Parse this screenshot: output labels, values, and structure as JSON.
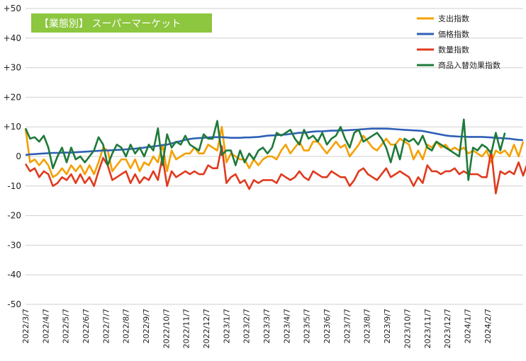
{
  "chart_data": {
    "type": "line",
    "title": "【業態別】 スーパーマーケット",
    "title_box_color": "#8DC63F",
    "ylim": [
      -50,
      50
    ],
    "yticks": [
      "+50",
      "+40",
      "+30",
      "+20",
      "+10",
      "0",
      "-10",
      "-20",
      "-30",
      "-40",
      "-50"
    ],
    "ytick_values": [
      50,
      40,
      30,
      20,
      10,
      0,
      -10,
      -20,
      -30,
      -40,
      -50
    ],
    "xtick_labels": [
      "2022/3/7",
      "2022/4/7",
      "2022/5/7",
      "2022/6/7",
      "2022/7/7",
      "2022/8/7",
      "2022/9/7",
      "2022/10/7",
      "2022/11/7",
      "2022/12/7",
      "2023/1/7",
      "2023/2/7",
      "2023/3/7",
      "2023/4/7",
      "2023/5/7",
      "2023/6/7",
      "2023/7/7",
      "2023/8/7",
      "2023/9/7",
      "2023/10/7",
      "2023/11/7",
      "2023/12/7",
      "2024/1/7",
      "2024/2/7"
    ],
    "points_per_month": 4.4,
    "legend_position": "top-right",
    "grid": true,
    "series": [
      {
        "name": "支出指数",
        "color": "#F5A000",
        "values": [
          9.5,
          -2,
          -1,
          -3,
          -1,
          -3,
          -7,
          -6,
          -4,
          -6,
          -3,
          -5,
          -3,
          -6,
          -3,
          -6,
          -2,
          3,
          2,
          -5,
          -3,
          -1,
          -1,
          -4,
          -1,
          -5,
          -2,
          -3,
          0,
          -2,
          4,
          -5,
          2,
          -1,
          0,
          1,
          1,
          3,
          1,
          1,
          4,
          3,
          2,
          10,
          -2,
          1,
          0,
          -1,
          -1,
          -4,
          -1,
          -3,
          -1,
          0,
          0,
          -1,
          2,
          4,
          1,
          3,
          5,
          2,
          2,
          5,
          5,
          3,
          1,
          3,
          5,
          3,
          4,
          0,
          2,
          4,
          7,
          5,
          3,
          2,
          4,
          6,
          4,
          4,
          6,
          5,
          4,
          -1,
          2,
          -1,
          4,
          3,
          5,
          3,
          4,
          2,
          3,
          2,
          3,
          1,
          2,
          1,
          0,
          2,
          -2,
          2,
          1,
          2,
          0,
          4,
          0,
          5
        ]
      },
      {
        "name": "価格指数",
        "color": "#2E5FB6",
        "values": [
          0.5,
          0.7,
          0.8,
          0.9,
          1.0,
          1.1,
          1.2,
          1.2,
          1.3,
          1.3,
          1.3,
          1.4,
          1.5,
          1.6,
          1.7,
          1.8,
          1.9,
          2.0,
          2.0,
          2.1,
          2.2,
          2.3,
          2.4,
          2.5,
          2.6,
          2.8,
          3.0,
          3.2,
          3.4,
          3.6,
          3.8,
          4.0,
          4.4,
          4.8,
          5.2,
          5.6,
          5.9,
          6.1,
          6.2,
          6.3,
          6.4,
          6.5,
          6.5,
          6.5,
          6.4,
          6.3,
          6.3,
          6.3,
          6.4,
          6.4,
          6.5,
          6.6,
          6.8,
          7.0,
          7.1,
          7.2,
          7.3,
          7.4,
          7.6,
          7.8,
          8.0,
          8.0,
          8.2,
          8.4,
          8.5,
          8.5,
          8.6,
          8.7,
          8.7,
          8.8,
          8.8,
          8.9,
          9.0,
          9.1,
          9.2,
          9.3,
          9.4,
          9.4,
          9.4,
          9.4,
          9.3,
          9.2,
          9.1,
          9.0,
          8.9,
          8.8,
          8.7,
          8.6,
          8.3,
          8.0,
          7.7,
          7.4,
          7.1,
          6.9,
          6.8,
          6.7,
          6.7,
          6.6,
          6.6,
          6.6,
          6.6,
          6.5,
          6.4,
          6.3,
          6.2,
          6.1,
          6.0,
          5.8,
          5.6,
          5.5
        ]
      },
      {
        "name": "数量指数",
        "color": "#E03A1E",
        "values": [
          -2.5,
          -5,
          -4,
          -7,
          -5,
          -6,
          -10,
          -9,
          -7,
          -8,
          -6,
          -9,
          -6,
          -9,
          -7,
          -10,
          -5,
          -0.5,
          -3,
          -8,
          -7,
          -6,
          -5,
          -9,
          -6,
          -9,
          -7,
          -8,
          -5,
          -8,
          0,
          -10,
          -5,
          -7,
          -6,
          -5,
          -6,
          -5,
          -6,
          -6,
          -3,
          -4,
          -4,
          3.5,
          -9,
          -7,
          -6,
          -9,
          -8,
          -11,
          -8,
          -9,
          -8,
          -8,
          -8,
          -9,
          -6,
          -7,
          -8,
          -7,
          -5,
          -7,
          -8,
          -5,
          -6,
          -7,
          -7,
          -5,
          -6,
          -7,
          -7,
          -10,
          -8,
          -5,
          -4,
          -6,
          -7,
          -8,
          -6,
          -4,
          -7,
          -6,
          -5,
          -6,
          -7,
          -10,
          -7,
          -9,
          -3,
          -5,
          -5,
          -6,
          -5,
          -5,
          -4,
          -6,
          -5,
          -6,
          -6,
          -6,
          -7,
          -7,
          2,
          -12.5,
          -5,
          -6,
          -5,
          -6,
          -2,
          -6.5,
          -2
        ]
      },
      {
        "name": "商品入替効果指数",
        "color": "#1E7A3A",
        "values": [
          9.5,
          6,
          6.5,
          5,
          7,
          3,
          -4,
          0,
          3,
          -2,
          3,
          -1,
          0,
          -2,
          0,
          2,
          6.5,
          4,
          -3,
          1,
          4,
          3,
          0,
          4,
          1,
          3,
          0,
          4,
          2,
          9.5,
          -3,
          7.5,
          3,
          5,
          4,
          7,
          4,
          3,
          2,
          7.5,
          6,
          6,
          12,
          0.5,
          2,
          2,
          -3,
          2,
          -2,
          1,
          -1,
          2,
          3,
          1,
          3,
          8,
          7,
          8,
          9,
          6,
          4,
          9,
          6,
          7,
          5,
          8,
          4,
          6,
          7,
          10,
          6,
          3,
          8,
          9,
          5,
          6,
          7,
          8,
          6,
          3,
          -2,
          4,
          -1,
          6,
          5,
          6,
          4,
          7,
          3,
          2,
          5,
          4,
          3,
          2,
          1,
          0,
          12.5,
          -8,
          3,
          2,
          4,
          3,
          1,
          8,
          2,
          8
        ]
      }
    ]
  }
}
